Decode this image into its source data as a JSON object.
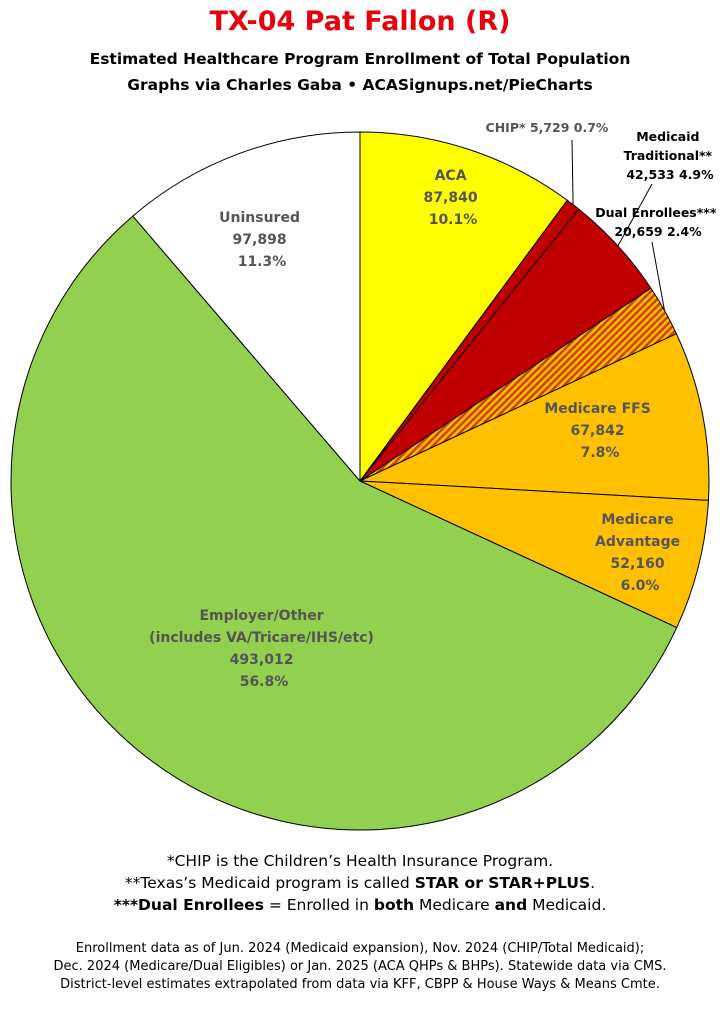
{
  "title": "TX-04 Pat Fallon (R)",
  "subtitle_line1": "Estimated Healthcare Program Enrollment of Total Population",
  "subtitle_line2": "Graphs via Charles Gaba  •  ACASignups.net/PieCharts",
  "chart_data": {
    "type": "pie",
    "start_angle_deg": 0,
    "direction": "clockwise",
    "slices": [
      {
        "name": "ACA",
        "value": 87840,
        "pct": "10.1%",
        "value_label": "87,840",
        "color": "#ffff00",
        "pattern": "solid",
        "text_color": "#555555"
      },
      {
        "name": "CHIP*",
        "value": 5729,
        "pct": "0.7%",
        "value_label": "5,729",
        "color": "#c00000",
        "pattern": "solid",
        "text_color": "#555555"
      },
      {
        "name": "Medicaid Traditional**",
        "value": 42533,
        "pct": "4.9%",
        "value_label": "42,533",
        "color": "#c00000",
        "pattern": "solid",
        "text_color": "#000000"
      },
      {
        "name": "Dual Enrollees***",
        "value": 20659,
        "pct": "2.4%",
        "value_label": "20,659",
        "color": "#ffc000",
        "pattern": "stripes",
        "stripe_color": "#d04000",
        "text_color": "#000000"
      },
      {
        "name": "Medicare FFS",
        "value": 67842,
        "pct": "7.8%",
        "value_label": "67,842",
        "color": "#ffc000",
        "pattern": "solid",
        "text_color": "#555555"
      },
      {
        "name": "Medicare Advantage",
        "value": 52160,
        "pct": "6.0%",
        "value_label": "52,160",
        "color": "#ffc000",
        "pattern": "solid",
        "text_color": "#555555"
      },
      {
        "name": "Employer/Other",
        "sublabel": "(includes VA/Tricare/IHS/etc)",
        "value": 493012,
        "pct": "56.8%",
        "value_label": "493,012",
        "color": "#92d050",
        "pattern": "solid",
        "text_color": "#555555"
      },
      {
        "name": "Uninsured",
        "value": 97898,
        "pct": "11.3%",
        "value_label": "97,898",
        "color": "#ffffff",
        "pattern": "solid",
        "text_color": "#555555"
      }
    ]
  },
  "labels": {
    "aca": {
      "l1": "ACA",
      "l2": "87,840",
      "l3": "10.1%"
    },
    "chip": {
      "l1": "CHIP* 5,729 0.7%"
    },
    "medicaid": {
      "l1": "Medicaid",
      "l2": "Traditional**",
      "l3": "42,533 4.9%"
    },
    "dual": {
      "l1": "Dual Enrollees***",
      "l2": "20,659 2.4%"
    },
    "ffs": {
      "l1": "Medicare FFS",
      "l2": "67,842",
      "l3": "7.8%"
    },
    "ma": {
      "l1": "Medicare",
      "l2": "Advantage",
      "l3": "52,160",
      "l4": "6.0%"
    },
    "employer": {
      "l1": "Employer/Other",
      "l2": "(includes VA/Tricare/IHS/etc)",
      "l3": "493,012",
      "l4": "56.8%"
    },
    "uninsured": {
      "l1": "Uninsured",
      "l2": "97,898",
      "l3": "11.3%"
    }
  },
  "notes": {
    "n1": "*CHIP is the Children’s Health Insurance Program.",
    "n2_a": "**Texas’s Medicaid program is called ",
    "n2_b": "STAR or STAR+PLUS",
    "n2_c": ".",
    "n3_a": "***Dual Enrollees",
    "n3_b": " = Enrolled in ",
    "n3_c": "both",
    "n3_d": " Medicare ",
    "n3_e": "and",
    "n3_f": " Medicaid."
  },
  "footer": {
    "f1": "Enrollment data as of Jun. 2024 (Medicaid expansion), Nov. 2024 (CHIP/Total Medicaid);",
    "f2": "Dec. 2024 (Medicare/Dual Eligibles) or Jan. 2025 (ACA QHPs & BHPs). Statewide data via CMS.",
    "f3": "District-level estimates extrapolated from data via KFF, CBPP & House Ways & Means Cmte."
  }
}
